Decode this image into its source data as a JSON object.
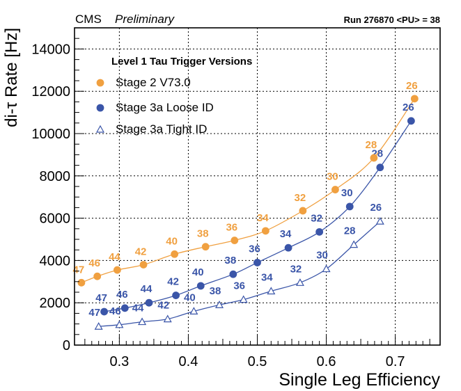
{
  "header": {
    "experiment": "CMS",
    "status": "Preliminary",
    "run_info": "Run 276870 <PU> = 38"
  },
  "colors": {
    "stage2": "#f0a040",
    "stage3a": "#3a55a8",
    "axis": "#000000",
    "grid": "#000000"
  },
  "chart_data": {
    "type": "line",
    "xlabel": "Single Leg Efficiency",
    "ylabel": "di-τ Rate [Hz]",
    "xlim": [
      0.235,
      0.765
    ],
    "ylim": [
      0,
      15000
    ],
    "xticks": [
      0.3,
      0.4,
      0.5,
      0.6,
      0.7
    ],
    "xtick_labels": [
      "0.3",
      "0.4",
      "0.5",
      "0.6",
      "0.7"
    ],
    "yticks": [
      0,
      2000,
      4000,
      6000,
      8000,
      10000,
      12000,
      14000
    ],
    "ytick_labels": [
      "0",
      "2000",
      "4000",
      "6000",
      "8000",
      "10000",
      "12000",
      "14000"
    ],
    "grid": true,
    "legend_title": "Level 1 Tau Trigger Versions",
    "legend_position": "top-left",
    "series": [
      {
        "name": "Stage 2 V73.0",
        "marker": "circle",
        "color": "#f0a040",
        "x": [
          0.245,
          0.268,
          0.297,
          0.335,
          0.38,
          0.425,
          0.467,
          0.512,
          0.566,
          0.613,
          0.669,
          0.728
        ],
        "y": [
          2950,
          3250,
          3550,
          3800,
          4300,
          4650,
          4950,
          5400,
          6350,
          7350,
          8850,
          11650
        ],
        "labels": [
          "47",
          "46",
          "44",
          "42",
          "40",
          "38",
          "36",
          "34",
          "32",
          "30",
          "28",
          "26"
        ]
      },
      {
        "name": "Stage 3a Loose ID",
        "marker": "filled-circle",
        "color": "#3a55a8",
        "x": [
          0.278,
          0.308,
          0.343,
          0.382,
          0.418,
          0.465,
          0.5,
          0.545,
          0.59,
          0.634,
          0.678,
          0.723
        ],
        "y": [
          1580,
          1750,
          2000,
          2350,
          2800,
          3350,
          3900,
          4600,
          5350,
          6550,
          8400,
          10600
        ],
        "labels": [
          "47",
          "46",
          "44",
          "42",
          "40",
          "38",
          "36",
          "34",
          "32",
          "30",
          "28",
          "26"
        ]
      },
      {
        "name": "Stage 3a Tight ID",
        "marker": "open-triangle",
        "color": "#3a55a8",
        "x": [
          0.27,
          0.3,
          0.333,
          0.37,
          0.408,
          0.445,
          0.48,
          0.52,
          0.562,
          0.6,
          0.64,
          0.678
        ],
        "y": [
          880,
          960,
          1100,
          1230,
          1600,
          1900,
          2150,
          2550,
          2950,
          3600,
          4750,
          5850
        ],
        "labels": [
          "47",
          "46",
          "44",
          "42",
          "40",
          "38",
          "36",
          "34",
          "32",
          "30",
          "28",
          "26"
        ]
      }
    ]
  }
}
